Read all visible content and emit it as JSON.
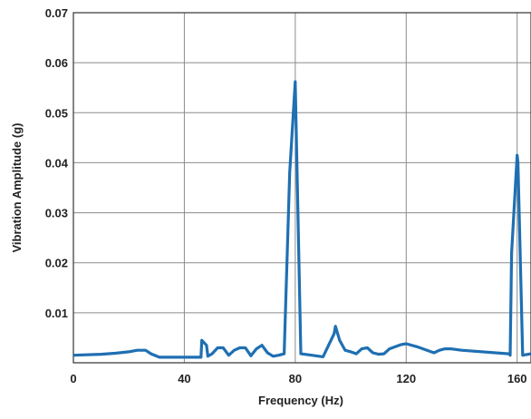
{
  "chart_data": {
    "type": "line",
    "title": "",
    "xlabel": "Frequency (Hz)",
    "ylabel": "Vibration Amplitude (g)",
    "xlim": [
      0,
      165
    ],
    "ylim": [
      0,
      0.07
    ],
    "x_ticks": [
      0,
      40,
      80,
      120,
      160
    ],
    "y_ticks": [
      0.01,
      0.02,
      0.03,
      0.04,
      0.05,
      0.06,
      0.07
    ],
    "x_tick_labels": [
      "0",
      "40",
      "80",
      "120",
      "160"
    ],
    "y_tick_labels": [
      "0.01",
      "0.02",
      "0.03",
      "0.04",
      "0.05",
      "0.06",
      "0.07"
    ],
    "grid": true,
    "legend": "none",
    "line_color": "#1f6fb2",
    "grid_color": "#8c8c8c",
    "series": [
      {
        "x": [
          0,
          10,
          15,
          20,
          23,
          26,
          28,
          31,
          37,
          40,
          46,
          46.3,
          48,
          48.5,
          50,
          52,
          54,
          56,
          58,
          60,
          62,
          64,
          66,
          68,
          70,
          72,
          74,
          76,
          78,
          80,
          82,
          86,
          90,
          94,
          94.5,
          96,
          98,
          100,
          102,
          104,
          106,
          108,
          110,
          112,
          114,
          116,
          118,
          120,
          124,
          130,
          132,
          134,
          136,
          140,
          157,
          157.5,
          158,
          160,
          160.3,
          162,
          165
        ],
        "y": [
          0.0015,
          0.0017,
          0.0019,
          0.0022,
          0.0025,
          0.0025,
          0.0018,
          0.0011,
          0.0011,
          0.0011,
          0.0011,
          0.0045,
          0.0035,
          0.0013,
          0.0018,
          0.003,
          0.003,
          0.0015,
          0.0025,
          0.003,
          0.003,
          0.0014,
          0.0028,
          0.0035,
          0.002,
          0.0013,
          0.0015,
          0.0018,
          0.038,
          0.0562,
          0.0018,
          0.0015,
          0.0012,
          0.0058,
          0.0073,
          0.0045,
          0.0025,
          0.0022,
          0.0018,
          0.0028,
          0.003,
          0.002,
          0.0017,
          0.0018,
          0.0028,
          0.0032,
          0.0036,
          0.0038,
          0.0032,
          0.002,
          0.0025,
          0.0028,
          0.0028,
          0.0025,
          0.0018,
          0.0015,
          0.022,
          0.0415,
          0.04,
          0.0015,
          0.0018
        ]
      }
    ]
  }
}
